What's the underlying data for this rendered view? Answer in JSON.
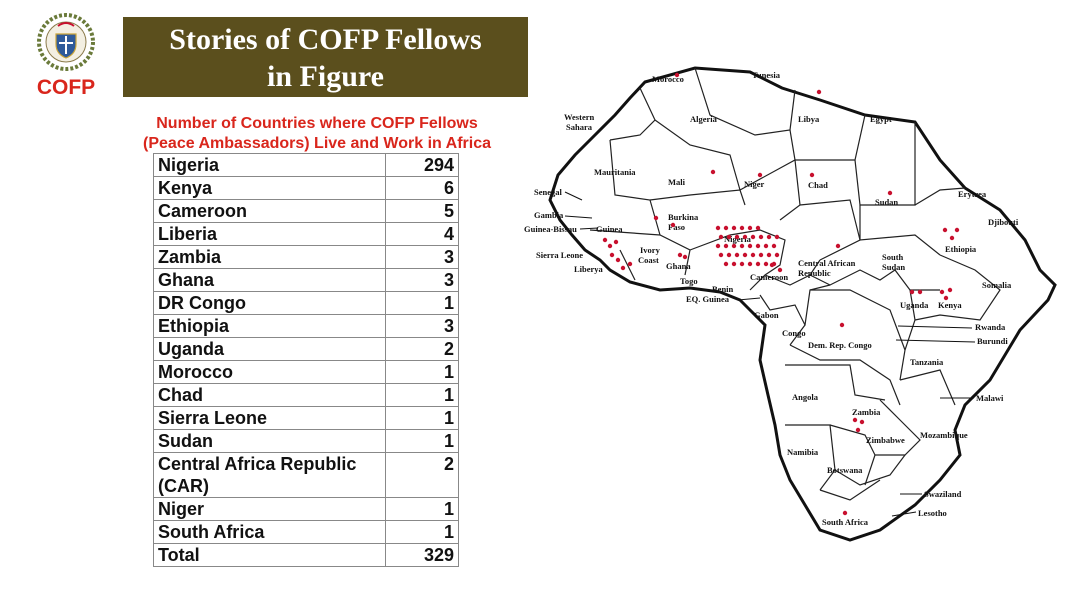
{
  "logo": {
    "text": "COFP"
  },
  "banner": {
    "line1": "Stories of COFP Fellows",
    "line2": "in Figure"
  },
  "subtitle": {
    "line1": "Number of Countries where COFP Fellows",
    "line2": "(Peace Ambassadors) Live and Work in Africa"
  },
  "table": {
    "rows": [
      {
        "country": "Nigeria",
        "count": "294"
      },
      {
        "country": "Kenya",
        "count": "6"
      },
      {
        "country": "Cameroon",
        "count": "5"
      },
      {
        "country": "Liberia",
        "count": "4"
      },
      {
        "country": "Zambia",
        "count": "3"
      },
      {
        "country": "Ghana",
        "count": "3"
      },
      {
        "country": "DR Congo",
        "count": "1"
      },
      {
        "country": "Ethiopia",
        "count": "3"
      },
      {
        "country": "Uganda",
        "count": "2"
      },
      {
        "country": "Morocco",
        "count": "1"
      },
      {
        "country": "Chad",
        "count": "1"
      },
      {
        "country": "Sierra Leone",
        "count": "1"
      },
      {
        "country": "Sudan",
        "count": "1"
      },
      {
        "country": "Central Africa Republic (CAR)",
        "count": "2"
      },
      {
        "country": "Niger",
        "count": "1"
      },
      {
        "country": "South Africa",
        "count": "1"
      }
    ],
    "total_label": "Total",
    "total_value": "329"
  },
  "map": {
    "labels": {
      "morocco": "Morocco",
      "tunesia": "Tunesia",
      "western_sahara_1": "Western",
      "western_sahara_2": "Sahara",
      "algeria": "Algeria",
      "libya": "Libya",
      "egypt": "Egypt",
      "mauritania": "Mauritania",
      "mali": "Mali",
      "niger": "Niger",
      "chad": "Chad",
      "sudan": "Sudan",
      "eritrea": "Erytrea",
      "djibouti": "Djibouti",
      "senegal": "Senegal",
      "gambia": "Gambia",
      "guinea_bissau": "Guinea-Bissau",
      "guinea": "Guinea",
      "burkina": "Burkina",
      "faso": "Faso",
      "sierra_leone": "Sierra Leone",
      "liberia": "Liberya",
      "ivory": "Ivory",
      "coast": "Coast",
      "ghana": "Ghana",
      "togo": "Togo",
      "nigeria": "Nigeria",
      "cameroon": "Cameroon",
      "car1": "Central African",
      "car2": "Republic",
      "south_sudan1": "South",
      "south_sudan2": "Sudan",
      "ethiopia": "Ethiopia",
      "somalia": "Somalia",
      "benin": "Benin",
      "eq_guinea": "EQ. Guinea",
      "gabon": "Gabon",
      "congo": "Congo",
      "drc": "Dem. Rep. Congo",
      "uganda": "Uganda",
      "kenya": "Kenya",
      "rwanda": "Rwanda",
      "burundi": "Burundi",
      "tanzania": "Tanzania",
      "angola": "Angola",
      "zambia": "Zambia",
      "malawi": "Malawi",
      "mozambique": "Mozambique",
      "namibia": "Namibia",
      "zimbabwe": "Zimbabwe",
      "botswana": "Botswana",
      "swaziland": "Swaziland",
      "lesotho": "Lesotho",
      "south_africa": "South Africa"
    },
    "dot_color": "#c8102e"
  }
}
